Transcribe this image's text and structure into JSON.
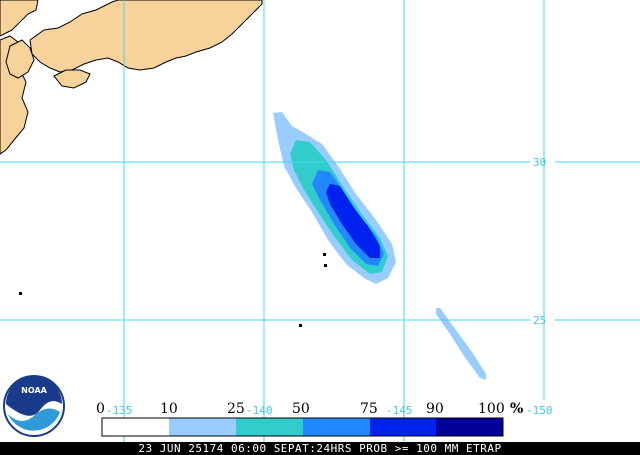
{
  "caption": "23 JUN 25174 06:00 SEPAT:24HRS PROB >= 100 MM ETRAP",
  "logo": {
    "text": "NOAA"
  },
  "grid": {
    "lat_labels": [
      "30",
      "25"
    ],
    "lon_labels": [
      "-135",
      "-140",
      "-145",
      "-150"
    ]
  },
  "legend": {
    "unit": "%",
    "ticks": [
      "0",
      "10",
      "25",
      "50",
      "75",
      "90",
      "100"
    ],
    "colors": [
      "#ffffff",
      "#99ccff",
      "#33cccc",
      "#2288ff",
      "#0022ee",
      "#000099"
    ]
  },
  "colors": {
    "land": "#f7d39b",
    "ocean": "#ffffff",
    "gridline": "#40d8e8",
    "caption_bg": "#000000"
  }
}
